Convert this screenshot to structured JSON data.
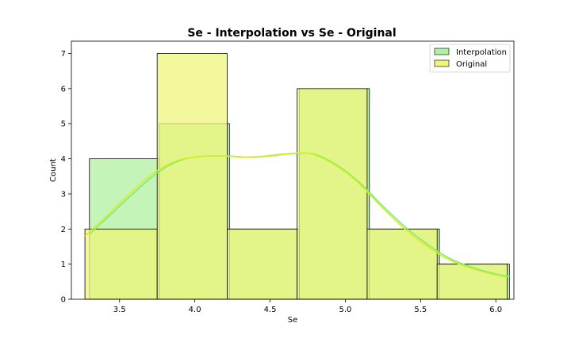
{
  "chart_data": {
    "type": "histogram",
    "title": "Se - Interpolation vs Se - Original",
    "xlabel": "Se",
    "ylabel": "Count",
    "xlim": [
      3.18,
      6.12
    ],
    "ylim": [
      0,
      7.35
    ],
    "x_ticks": [
      {
        "value": 3.5,
        "label": "3.5"
      },
      {
        "value": 4.0,
        "label": "4.0"
      },
      {
        "value": 4.5,
        "label": "4.5"
      },
      {
        "value": 5.0,
        "label": "5.0"
      },
      {
        "value": 5.5,
        "label": "5.5"
      },
      {
        "value": 6.0,
        "label": "6.0"
      }
    ],
    "y_ticks": [
      {
        "value": 0,
        "label": "0"
      },
      {
        "value": 1,
        "label": "1"
      },
      {
        "value": 2,
        "label": "2"
      },
      {
        "value": 3,
        "label": "3"
      },
      {
        "value": 4,
        "label": "4"
      },
      {
        "value": 5,
        "label": "5"
      },
      {
        "value": 6,
        "label": "6"
      },
      {
        "value": 7,
        "label": "7"
      }
    ],
    "grid": false,
    "legend_position": "top-right",
    "series": [
      {
        "name": "Interpolation",
        "color": "#b0f0a0",
        "kde_color": "#7ee87e",
        "bins": [
          {
            "x0": 3.3,
            "x1": 3.765,
            "count": 4
          },
          {
            "x0": 3.765,
            "x1": 4.23,
            "count": 5
          },
          {
            "x0": 4.23,
            "x1": 4.695,
            "count": 2
          },
          {
            "x0": 4.695,
            "x1": 5.16,
            "count": 6
          },
          {
            "x0": 5.16,
            "x1": 5.625,
            "count": 2
          },
          {
            "x0": 5.625,
            "x1": 6.09,
            "count": 1
          }
        ],
        "kde": {
          "x": [
            3.3,
            3.45,
            3.6,
            3.75,
            3.9,
            4.05,
            4.2,
            4.35,
            4.5,
            4.65,
            4.8,
            4.95,
            5.1,
            5.25,
            5.4,
            5.55,
            5.7,
            5.85,
            6.0,
            6.09
          ],
          "y": [
            1.85,
            2.45,
            3.05,
            3.6,
            3.95,
            4.07,
            4.08,
            4.05,
            4.08,
            4.15,
            4.12,
            3.8,
            3.3,
            2.65,
            2.05,
            1.55,
            1.15,
            0.9,
            0.72,
            0.65
          ]
        }
      },
      {
        "name": "Original",
        "color": "#eef57a",
        "kde_color": "#d7f01a",
        "bins": [
          {
            "x0": 3.27,
            "x1": 3.75,
            "count": 2
          },
          {
            "x0": 3.75,
            "x1": 4.215,
            "count": 7
          },
          {
            "x0": 4.215,
            "x1": 4.68,
            "count": 2
          },
          {
            "x0": 4.68,
            "x1": 5.145,
            "count": 6
          },
          {
            "x0": 5.145,
            "x1": 5.61,
            "count": 2
          },
          {
            "x0": 5.61,
            "x1": 6.075,
            "count": 1
          }
        ],
        "kde": {
          "x": [
            3.27,
            3.42,
            3.57,
            3.72,
            3.87,
            4.02,
            4.17,
            4.32,
            4.47,
            4.62,
            4.77,
            4.92,
            5.07,
            5.22,
            5.37,
            5.52,
            5.67,
            5.82,
            5.97,
            6.075
          ],
          "y": [
            1.8,
            2.4,
            3.02,
            3.58,
            3.93,
            4.06,
            4.08,
            4.05,
            4.08,
            4.15,
            4.14,
            3.85,
            3.38,
            2.72,
            2.1,
            1.58,
            1.17,
            0.9,
            0.72,
            0.62
          ]
        }
      }
    ]
  }
}
